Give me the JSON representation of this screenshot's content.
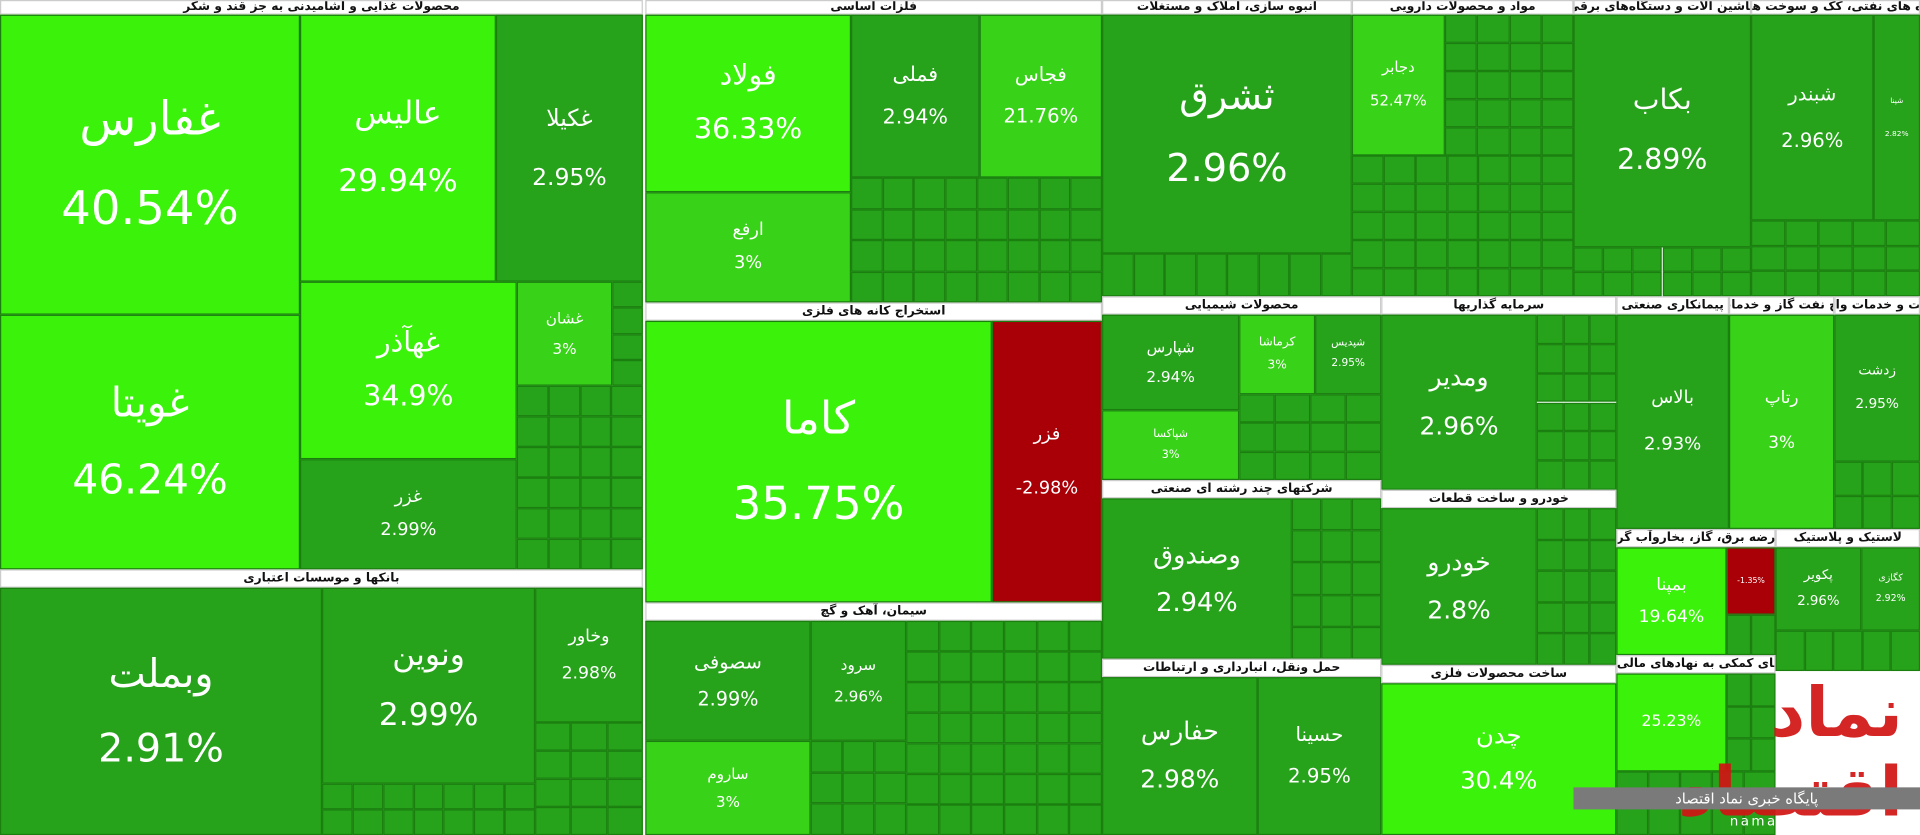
{
  "sectors": [
    {
      "title": "محصولات غذایی و آشامیدنی به جز قند و شکر",
      "tiles": [
        {
          "symbol": "غفارس",
          "change": "40.54%"
        },
        {
          "symbol": "غویتا",
          "change": "46.24%"
        },
        {
          "symbol": "عالیس",
          "change": "29.94%"
        },
        {
          "symbol": "غکیلا",
          "change": "2.95%"
        },
        {
          "symbol": "غهآذر",
          "change": "34.9%"
        },
        {
          "symbol": "غزر",
          "change": "2.99%"
        },
        {
          "symbol": "غشان",
          "change": "3%"
        }
      ]
    },
    {
      "title": "بانکها و موسسات اعتباری",
      "tiles": [
        {
          "symbol": "وبملت",
          "change": "2.91%"
        },
        {
          "symbol": "ونوین",
          "change": "2.99%"
        },
        {
          "symbol": "وخاور",
          "change": "2.98%"
        }
      ]
    },
    {
      "title": "فلزات اساسی",
      "tiles": [
        {
          "symbol": "فولاد",
          "change": "36.33%"
        },
        {
          "symbol": "فملی",
          "change": "2.94%"
        },
        {
          "symbol": "فجاس",
          "change": "21.76%"
        },
        {
          "symbol": "ارفع",
          "change": "3%"
        }
      ]
    },
    {
      "title": "استخراج کانه های فلزی",
      "tiles": [
        {
          "symbol": "کاما",
          "change": "35.75%"
        },
        {
          "symbol": "فزر",
          "change": "-2.98%"
        }
      ]
    },
    {
      "title": "سیمان، آهک و گچ",
      "tiles": [
        {
          "symbol": "سصوفی",
          "change": "2.99%"
        },
        {
          "symbol": "ساروم",
          "change": "3%"
        },
        {
          "symbol": "سرود",
          "change": "2.96%"
        }
      ]
    },
    {
      "title": "انبوه سازی، املاک و مستغلات",
      "tiles": [
        {
          "symbol": "ثشرق",
          "change": "2.96%"
        }
      ]
    },
    {
      "title": "مواد و محصولات دارویی",
      "tiles": [
        {
          "symbol": "دجابر",
          "change": "52.47%"
        }
      ]
    },
    {
      "title": "ماشین آلات و دستگاه‌های برقی",
      "tiles": [
        {
          "symbol": "بکاب",
          "change": "2.89%"
        }
      ]
    },
    {
      "title": "فرآورده های نفتی، کک و سوخت هسته ای",
      "tiles": [
        {
          "symbol": "شبندر",
          "change": "2.96%"
        },
        {
          "symbol": "شپنا",
          "change": "2.82%"
        }
      ]
    },
    {
      "title": "محصولات شیمیایی",
      "tiles": [
        {
          "symbol": "شپارس",
          "change": "2.94%"
        },
        {
          "symbol": "شپاکسا",
          "change": "3%"
        },
        {
          "symbol": "کرماشا",
          "change": "3%"
        },
        {
          "symbol": "شپدیس",
          "change": "2.95%"
        }
      ]
    },
    {
      "title": "سرمایه گذاریها",
      "tiles": [
        {
          "symbol": "ومدیر",
          "change": "2.96%"
        }
      ]
    },
    {
      "title": "پیمانکاری صنعتی",
      "tiles": [
        {
          "symbol": "بالاس",
          "change": "2.93%"
        }
      ]
    },
    {
      "title": "استخراج نفت گاز و خدمات جنبی",
      "tiles": [
        {
          "symbol": "رتاپ",
          "change": "3%"
        }
      ]
    },
    {
      "title": "زراعت و خدمات وابسته",
      "tiles": [
        {
          "symbol": "زدشت",
          "change": "2.95%"
        }
      ]
    },
    {
      "title": "شرکتهای چند رشته ای صنعتی",
      "tiles": [
        {
          "symbol": "وصندوق",
          "change": "2.94%"
        }
      ]
    },
    {
      "title": "خودرو و ساخت قطعات",
      "tiles": [
        {
          "symbol": "خودرو",
          "change": "2.8%"
        }
      ]
    },
    {
      "title": "حمل ونقل، انبارداری و ارتباطات",
      "tiles": [
        {
          "symbol": "حفارس",
          "change": "2.98%"
        },
        {
          "symbol": "حسینا",
          "change": "2.95%"
        }
      ]
    },
    {
      "title": "ساخت محصولات فلزی",
      "tiles": [
        {
          "symbol": "چدن",
          "change": "30.4%"
        }
      ]
    },
    {
      "title": "عرضه برق، گاز، بخاروآب گرم",
      "tiles": [
        {
          "symbol": "بمپنا",
          "change": "19.64%"
        },
        {
          "change": "-1.35%"
        }
      ]
    },
    {
      "title": "لاستیک و پلاستیک",
      "tiles": [
        {
          "symbol": "پکویر",
          "change": "2.96%"
        },
        {
          "symbol": "کگازی",
          "change": "2.92%"
        }
      ]
    },
    {
      "title": "فعالیتهای کمکی به نهادهای مالی واسط",
      "tiles": [
        {
          "change": "25.23%"
        }
      ]
    }
  ],
  "watermark": {
    "logo": "نماد اقتصاد",
    "tagline": "پایگاه خبری نماد اقتصاد",
    "site": "namadeghtesad"
  }
}
